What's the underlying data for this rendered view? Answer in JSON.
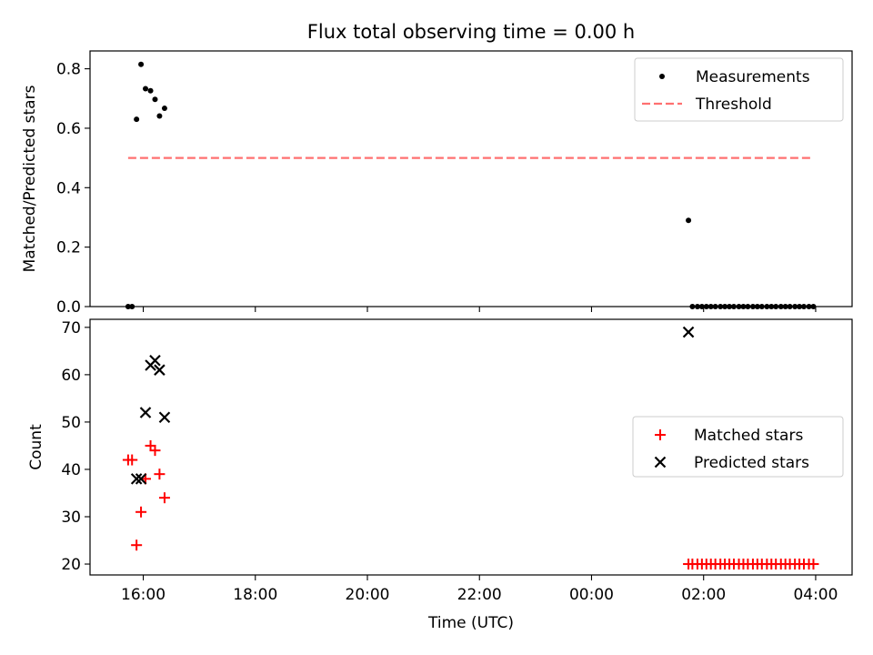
{
  "chart_data": [
    {
      "type": "scatter",
      "title": "Flux total observing time = 0.00 h",
      "xlabel": "",
      "ylabel": "Matched/Predicted stars",
      "xlim": [
        15.05,
        28.65
      ],
      "ylim": [
        0.0,
        0.86
      ],
      "yticks": [
        0.0,
        0.2,
        0.4,
        0.6,
        0.8
      ],
      "ytick_labels": [
        "0.0",
        "0.2",
        "0.4",
        "0.6",
        "0.8"
      ],
      "legend_position": "top-right",
      "series": [
        {
          "name": "Measurements",
          "kind": "scatter",
          "marker": "dot",
          "color": "#000000",
          "x": [
            15.73,
            15.8,
            15.88,
            15.96,
            16.04,
            16.13,
            16.21,
            16.29,
            16.38,
            25.73,
            25.8,
            25.89,
            25.97,
            26.05,
            26.13,
            26.21,
            26.3,
            26.38,
            26.46,
            26.54,
            26.63,
            26.71,
            26.79,
            26.88,
            26.96,
            27.04,
            27.13,
            27.21,
            27.29,
            27.38,
            27.46,
            27.54,
            27.63,
            27.71,
            27.79,
            27.88,
            27.96
          ],
          "y": [
            0.0,
            0.0,
            0.63,
            0.815,
            0.733,
            0.726,
            0.697,
            0.641,
            0.667,
            0.29,
            0.0,
            0.0,
            0.0,
            0.0,
            0.0,
            0.0,
            0.0,
            0.0,
            0.0,
            0.0,
            0.0,
            0.0,
            0.0,
            0.0,
            0.0,
            0.0,
            0.0,
            0.0,
            0.0,
            0.0,
            0.0,
            0.0,
            0.0,
            0.0,
            0.0,
            0.0,
            0.0
          ]
        },
        {
          "name": "Threshold",
          "kind": "line",
          "style": "dashed",
          "color": "#ff7070",
          "x": [
            15.73,
            27.96
          ],
          "y": [
            0.5,
            0.5
          ]
        }
      ]
    },
    {
      "type": "scatter",
      "title": "",
      "xlabel": "Time (UTC)",
      "ylabel": "Count",
      "xlim": [
        15.05,
        28.65
      ],
      "ylim": [
        17.7,
        71.7
      ],
      "xticks": [
        16,
        18,
        20,
        22,
        24,
        26,
        28
      ],
      "xtick_labels": [
        "16:00",
        "18:00",
        "20:00",
        "22:00",
        "00:00",
        "02:00",
        "04:00"
      ],
      "yticks": [
        20,
        30,
        40,
        50,
        60,
        70
      ],
      "ytick_labels": [
        "20",
        "30",
        "40",
        "50",
        "60",
        "70"
      ],
      "legend_position": "center-right",
      "series": [
        {
          "name": "Matched stars",
          "kind": "scatter",
          "marker": "plus",
          "color": "#ff0000",
          "x": [
            15.73,
            15.8,
            15.88,
            15.96,
            16.04,
            16.13,
            16.21,
            16.29,
            16.38,
            25.73,
            25.8,
            25.89,
            25.97,
            26.05,
            26.13,
            26.21,
            26.3,
            26.38,
            26.46,
            26.54,
            26.63,
            26.71,
            26.79,
            26.88,
            26.96,
            27.04,
            27.13,
            27.21,
            27.29,
            27.38,
            27.46,
            27.54,
            27.63,
            27.71,
            27.79,
            27.88,
            27.96
          ],
          "y": [
            42,
            42,
            24,
            31,
            38,
            45,
            44,
            39,
            34,
            20,
            20,
            20,
            20,
            20,
            20,
            20,
            20,
            20,
            20,
            20,
            20,
            20,
            20,
            20,
            20,
            20,
            20,
            20,
            20,
            20,
            20,
            20,
            20,
            20,
            20,
            20,
            20
          ]
        },
        {
          "name": "Predicted stars",
          "kind": "scatter",
          "marker": "x",
          "color": "#000000",
          "x": [
            15.88,
            15.96,
            16.04,
            16.13,
            16.21,
            16.29,
            16.38,
            25.73
          ],
          "y": [
            38,
            38,
            52,
            62,
            63,
            61,
            51,
            69
          ]
        }
      ]
    }
  ]
}
